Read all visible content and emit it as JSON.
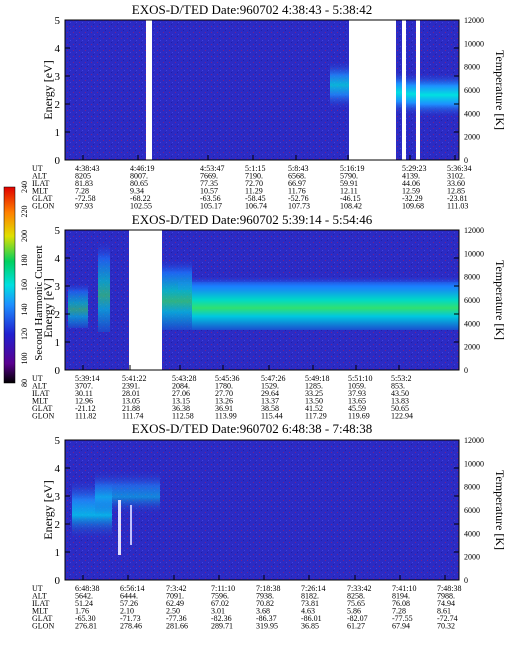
{
  "panels": [
    {
      "title": "EXOS-D/TED   Date:960702  4:38:43 - 5:38:42",
      "ylabel": "Energy [eV]",
      "y2label": "Temperature [K]",
      "yticks": [
        "0",
        "1",
        "2",
        "3",
        "4",
        "5"
      ],
      "y2ticks": [
        "0",
        "2000",
        "4000",
        "6000",
        "8000",
        "10000",
        "12000"
      ],
      "row_labels": [
        "UT",
        "ALT",
        "ILAT",
        "MLT",
        "GLAT",
        "GLON"
      ],
      "columns": [
        [
          "4:38:43",
          "8205",
          "81.83",
          "7.28",
          "-72.58",
          "97.93"
        ],
        [
          "4:46:19",
          "8007.",
          "80.65",
          "9.34",
          "-68.22",
          "102.55"
        ],
        [
          "4:53:47",
          "7669.",
          "77.35",
          "10.57",
          "-63.56",
          "105.17"
        ],
        [
          "5:1:15",
          "7190.",
          "72.70",
          "11.29",
          "-58.45",
          "106.74"
        ],
        [
          "5:8:43",
          "6568.",
          "66.97",
          "11.76",
          "-52.76",
          "107.73"
        ],
        [
          "5:16:19",
          "5790.",
          "59.91",
          "12.11",
          "-46.15",
          "108.42"
        ],
        [
          "5:29:23",
          "4139.",
          "44.06",
          "12.59",
          "-32.29",
          "109.68"
        ],
        [
          "5:36:34",
          "3102.",
          "33.60",
          "12.85",
          "-23.81",
          "111.03"
        ]
      ]
    },
    {
      "title": "EXOS-D/TED   Date:960702  5:39:14 - 5:54:46",
      "ylabel": "Energy [eV]",
      "y2label": "Temperature [K]",
      "yticks": [
        "0",
        "1",
        "2",
        "3",
        "4",
        "5"
      ],
      "y2ticks": [
        "0",
        "2000",
        "4000",
        "6000",
        "8000",
        "10000",
        "12000"
      ],
      "row_labels": [
        "UT",
        "ALT",
        "ILAT",
        "MLT",
        "GLAT",
        "GLON"
      ],
      "columns": [
        [
          "5:39:14",
          "3707.",
          "30.11",
          "12.96",
          "-21.12",
          "111.82"
        ],
        [
          "5:41:22",
          "2391.",
          "28.01",
          "13.05",
          "21.88",
          "111.74"
        ],
        [
          "5:43:28",
          "2084.",
          "27.06",
          "13.15",
          "36.38",
          "112.58"
        ],
        [
          "5:45:36",
          "1780.",
          "27.70",
          "13.26",
          "36.91",
          "113.99"
        ],
        [
          "5:47:26",
          "1529.",
          "29.64",
          "13.37",
          "38.58",
          "115.44"
        ],
        [
          "5:49:18",
          "1285.",
          "33.25",
          "13.50",
          "41.52",
          "117.29"
        ],
        [
          "5:51:10",
          "1059.",
          "37.93",
          "13.65",
          "45.59",
          "119.69"
        ],
        [
          "5:53:2",
          "853.",
          "43.50",
          "13.83",
          "50.65",
          "122.94"
        ]
      ]
    },
    {
      "title": "EXOS-D/TED   Date:960702  6:48:38 - 7:48:38",
      "ylabel": "Energy [eV]",
      "y2label": "Temperature [K]",
      "yticks": [
        "0",
        "1",
        "2",
        "3",
        "4",
        "5"
      ],
      "y2ticks": [
        "0",
        "2000",
        "4000",
        "6000",
        "8000",
        "10000",
        "12000"
      ],
      "row_labels": [
        "UT",
        "ALT",
        "ILAT",
        "MLT",
        "GLAT",
        "GLON"
      ],
      "columns": [
        [
          "6:48:38",
          "5642.",
          "51.24",
          "1.76",
          "-65.30",
          "276.81"
        ],
        [
          "6:56:14",
          "6444.",
          "57.26",
          "2.10",
          "-71.73",
          "278.46"
        ],
        [
          "7:3:42",
          "7091.",
          "62.49",
          "2.50",
          "-77.36",
          "281.66"
        ],
        [
          "7:11:10",
          "7596.",
          "67.02",
          "3.01",
          "-82.36",
          "289.71"
        ],
        [
          "7:18:38",
          "7938.",
          "70.82",
          "3.68",
          "-86.37",
          "319.95"
        ],
        [
          "7:26:14",
          "8182.",
          "73.81",
          "4.63",
          "-86.01",
          "36.85"
        ],
        [
          "7:33:42",
          "8258.",
          "75.65",
          "5.86",
          "-82.07",
          "61.27"
        ],
        [
          "7:41:10",
          "8194.",
          "76.08",
          "7.28",
          "-77.55",
          "67.94"
        ],
        [
          "7:48:38",
          "7988.",
          "74.94",
          "8.61",
          "-72.74",
          "70.32"
        ]
      ]
    }
  ],
  "colorbar": {
    "label": "Second Harmonic Current",
    "ticks": [
      "80",
      "100",
      "120",
      "140",
      "160",
      "180",
      "200",
      "220",
      "240"
    ]
  },
  "chart_data": [
    {
      "type": "heatmap",
      "title": "EXOS-D/TED   Date:960702  4:38:43 - 5:38:42",
      "ylabel": "Energy [eV]",
      "y2label": "Temperature [K]",
      "ylim": [
        0,
        5
      ],
      "y2lim": [
        0,
        12000
      ],
      "x": [
        "4:38:43",
        "4:46:19",
        "4:53:47",
        "5:1:15",
        "5:8:43",
        "5:16:19",
        "5:29:23",
        "5:36:34"
      ],
      "colorbar_range": [
        80,
        240
      ]
    },
    {
      "type": "heatmap",
      "title": "EXOS-D/TED   Date:960702  5:39:14 - 5:54:46",
      "ylabel": "Energy [eV]",
      "y2label": "Temperature [K]",
      "ylim": [
        0,
        5
      ],
      "y2lim": [
        0,
        12000
      ],
      "x": [
        "5:39:14",
        "5:41:22",
        "5:43:28",
        "5:45:36",
        "5:47:26",
        "5:49:18",
        "5:51:10",
        "5:53:2"
      ],
      "colorbar_range": [
        80,
        240
      ]
    },
    {
      "type": "heatmap",
      "title": "EXOS-D/TED   Date:960702  6:48:38 - 7:48:38",
      "ylabel": "Energy [eV]",
      "y2label": "Temperature [K]",
      "ylim": [
        0,
        5
      ],
      "y2lim": [
        0,
        12000
      ],
      "x": [
        "6:48:38",
        "6:56:14",
        "7:3:42",
        "7:11:10",
        "7:18:38",
        "7:26:14",
        "7:33:42",
        "7:41:10",
        "7:48:38"
      ],
      "colorbar_range": [
        80,
        240
      ]
    }
  ]
}
